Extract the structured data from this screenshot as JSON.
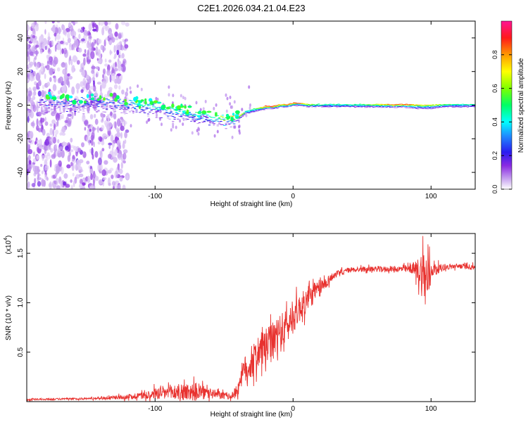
{
  "title": "C2E1.2026.034.21.04.E23",
  "colors": {
    "snr_line": "#e8322f",
    "axis": "#000000",
    "background": "#ffffff"
  },
  "colorbar": {
    "label": "Normalized spectral amplitude",
    "ticks": [
      "0.0",
      "0.2",
      "0.4",
      "0.6",
      "0.8"
    ],
    "tick_values": [
      0.0,
      0.2,
      0.4,
      0.6,
      0.8
    ],
    "range": [
      0,
      1
    ],
    "colormap": "rainbow (white → violet → blue → cyan → green → yellow → orange → red → magenta)"
  },
  "chart_data": [
    {
      "type": "heatmap",
      "name": "spectrogram",
      "title": "C2E1.2026.034.21.04.E23",
      "xlabel": "Height of straight line (km)",
      "ylabel": "Frequency (Hz)",
      "xlim": [
        -193,
        132
      ],
      "ylim": [
        -50,
        50
      ],
      "x_ticks": [
        -100,
        0,
        100
      ],
      "x_tick_labels": [
        "-100",
        "0",
        "100"
      ],
      "y_ticks": [
        -40,
        -20,
        0,
        20,
        40
      ],
      "y_tick_labels": [
        "-40",
        "-20",
        "0",
        "20",
        "40"
      ],
      "band_track": {
        "x": [
          -185,
          -160,
          -140,
          -120,
          -100,
          -90,
          -80,
          -70,
          -60,
          -50,
          -45,
          -40,
          -35,
          -30,
          -25,
          -20,
          -15,
          -10,
          -5,
          0,
          5,
          10,
          20,
          30,
          50,
          70,
          80,
          90,
          100,
          110,
          120,
          132
        ],
        "center_hz": [
          4,
          4,
          4,
          3,
          1,
          -1,
          -2,
          -4,
          -5,
          -7,
          -7,
          -6,
          -3,
          -2,
          -1,
          0,
          0,
          1,
          1,
          2,
          2,
          1,
          1,
          1,
          1,
          1,
          1,
          1,
          1,
          1,
          1,
          1
        ],
        "half_width_hz": [
          7,
          7,
          7,
          6,
          6,
          6,
          6,
          6,
          7,
          5,
          3,
          2,
          2,
          2,
          2,
          2,
          2,
          2,
          2,
          2,
          2,
          2,
          2,
          2,
          2,
          2,
          2,
          3,
          3,
          2,
          2,
          2
        ],
        "peak_amplitude": [
          0.25,
          0.3,
          0.35,
          0.4,
          0.45,
          0.5,
          0.5,
          0.5,
          0.45,
          0.65,
          0.85,
          0.9,
          0.5,
          0.5,
          0.7,
          0.95,
          0.95,
          0.8,
          0.9,
          0.95,
          0.95,
          0.7,
          0.5,
          0.5,
          0.55,
          0.9,
          0.95,
          0.8,
          0.75,
          0.55,
          0.5,
          0.5
        ]
      },
      "noise_region_x": [
        -193,
        -120
      ]
    },
    {
      "type": "line",
      "name": "snr",
      "xlabel": "Height of straight line (km)",
      "ylabel": "SNR (10 * v/v)",
      "y_scale_label": "(x10",
      "y_scale_exponent": "4",
      "xlim": [
        -193,
        132
      ],
      "ylim": [
        0,
        1.7
      ],
      "x_ticks": [
        -100,
        0,
        100
      ],
      "x_tick_labels": [
        "-100",
        "0",
        "100"
      ],
      "y_ticks": [
        0.5,
        1.0,
        1.5
      ],
      "y_tick_labels": [
        "0.5",
        "1.0",
        "1.5"
      ],
      "series": [
        {
          "name": "SNR",
          "x": [
            -193,
            -150,
            -130,
            -110,
            -100,
            -90,
            -80,
            -70,
            -60,
            -50,
            -45,
            -40,
            -38,
            -35,
            -30,
            -25,
            -20,
            -15,
            -10,
            -5,
            0,
            5,
            10,
            15,
            20,
            25,
            30,
            40,
            50,
            60,
            70,
            80,
            86,
            90,
            94,
            97,
            100,
            110,
            120,
            132
          ],
          "mean": [
            0.02,
            0.03,
            0.04,
            0.06,
            0.08,
            0.09,
            0.1,
            0.1,
            0.08,
            0.06,
            0.05,
            0.12,
            0.25,
            0.32,
            0.38,
            0.5,
            0.55,
            0.6,
            0.68,
            0.75,
            0.85,
            0.95,
            1.02,
            1.1,
            1.15,
            1.22,
            1.28,
            1.33,
            1.34,
            1.34,
            1.34,
            1.34,
            1.34,
            1.33,
            1.3,
            1.2,
            1.33,
            1.36,
            1.37,
            1.36
          ],
          "noise": [
            0.01,
            0.01,
            0.02,
            0.04,
            0.07,
            0.09,
            0.1,
            0.1,
            0.06,
            0.04,
            0.03,
            0.08,
            0.12,
            0.16,
            0.18,
            0.2,
            0.2,
            0.22,
            0.22,
            0.2,
            0.18,
            0.16,
            0.14,
            0.12,
            0.1,
            0.06,
            0.04,
            0.03,
            0.03,
            0.03,
            0.03,
            0.04,
            0.05,
            0.12,
            0.3,
            0.4,
            0.08,
            0.03,
            0.03,
            0.03
          ]
        }
      ]
    }
  ]
}
